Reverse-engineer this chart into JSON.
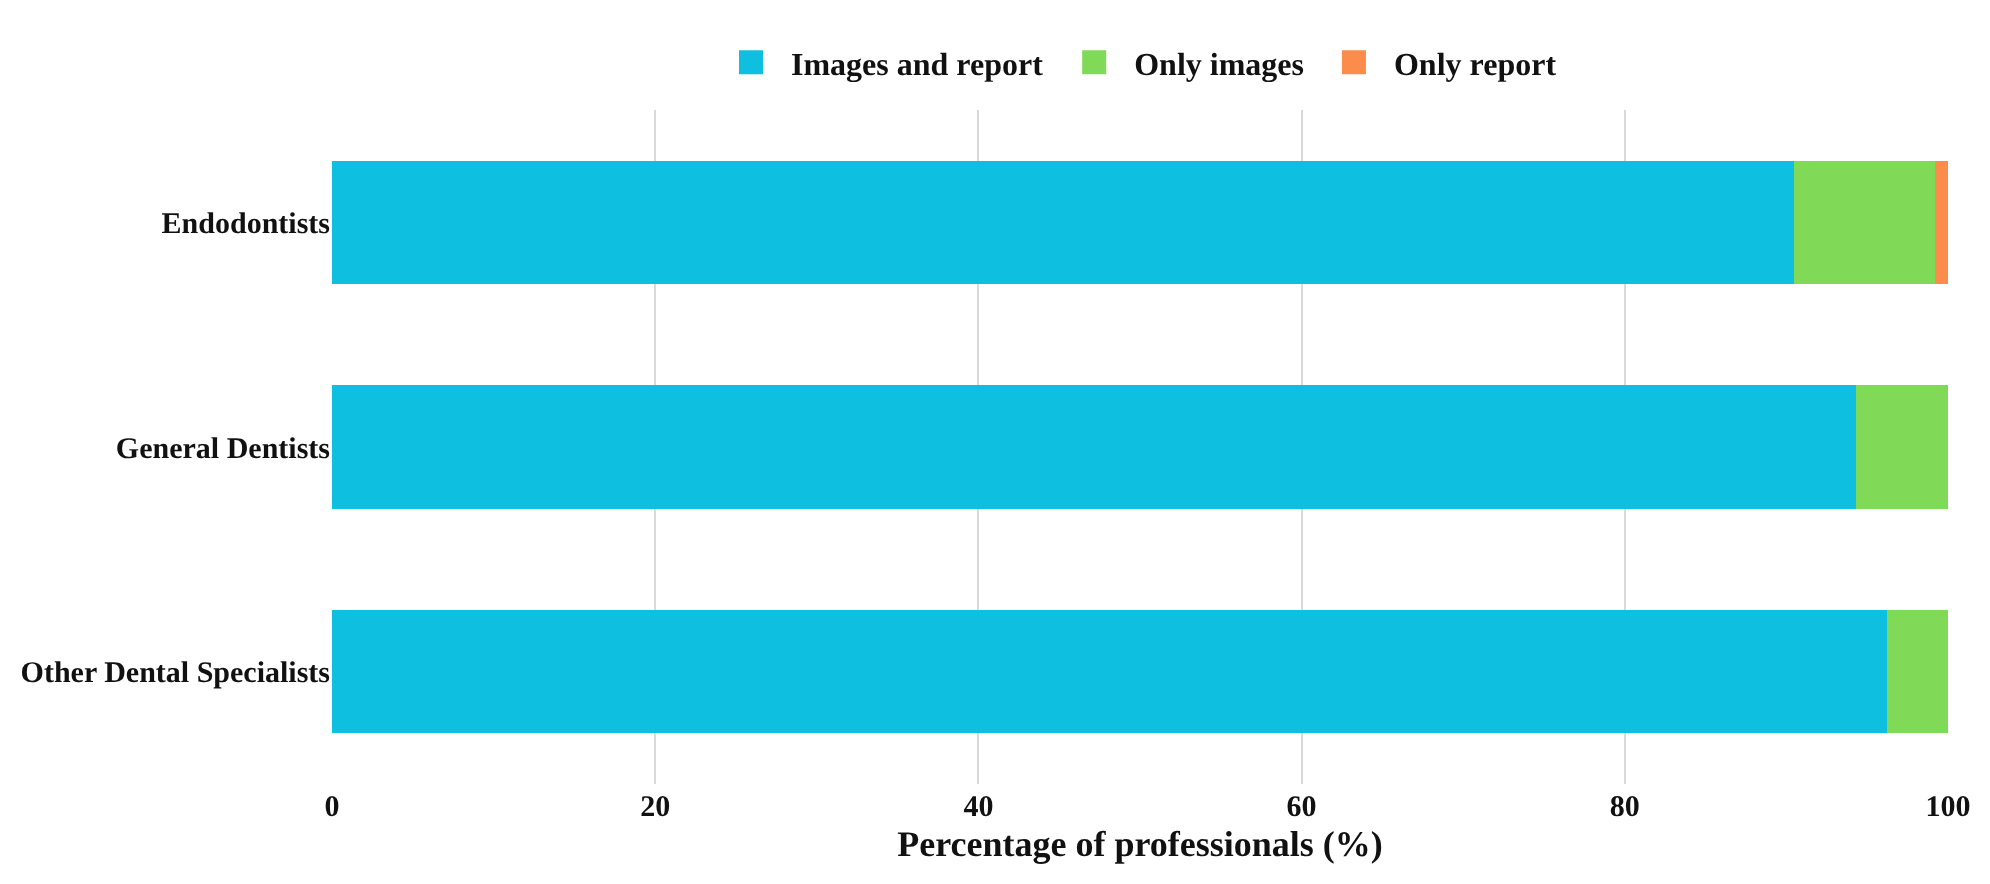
{
  "chart_data": {
    "type": "bar",
    "orientation": "horizontal",
    "stacked": true,
    "xlabel": "Percentage of professionals (%)",
    "categories": [
      "Endodontists",
      "General Dentists",
      "Other Dental Specialists"
    ],
    "series": [
      {
        "name": "Images and report",
        "color": "#0fbfdf",
        "values": [
          90.5,
          94.3,
          96.2
        ]
      },
      {
        "name": "Only images",
        "color": "#80d957",
        "values": [
          8.7,
          5.7,
          3.8
        ]
      },
      {
        "name": "Only report",
        "color": "#fb8c4b",
        "values": [
          0.8,
          0,
          0
        ]
      }
    ],
    "xlim": [
      0,
      100
    ],
    "xticks": [
      0,
      20,
      40,
      60,
      80,
      100
    ],
    "grid": "x",
    "legend": "top"
  }
}
